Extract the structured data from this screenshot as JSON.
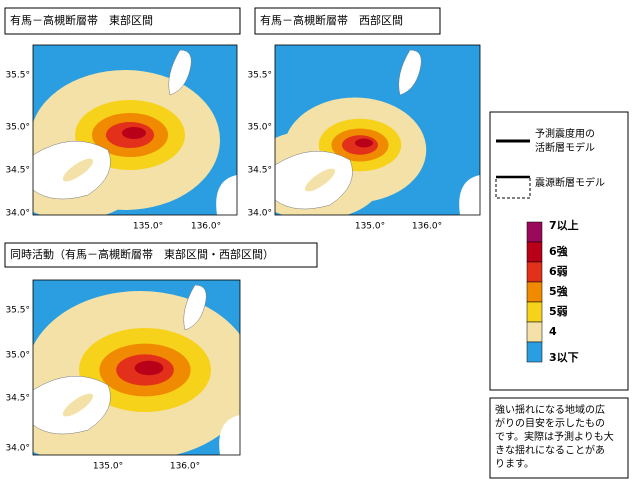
{
  "panels": [
    {
      "title": "有馬－高槻断層帯　東部区間",
      "yticks": [
        "35.5°",
        "35.0°",
        "34.5°",
        "34.0°"
      ],
      "xticks": [
        "135.0°",
        "136.0°"
      ]
    },
    {
      "title": "有馬－高槻断層帯　西部区間",
      "yticks": [
        "35.5°",
        "35.0°",
        "34.5°",
        "34.0°"
      ],
      "xticks": [
        "135.0°",
        "136.0°"
      ]
    },
    {
      "title": "同時活動（有馬－高槻断層帯　東部区間・西部区間）",
      "yticks": [
        "35.5°",
        "35.0°",
        "34.5°",
        "34.0°"
      ],
      "xticks": [
        "135.0°",
        "136.0°"
      ]
    }
  ],
  "legend": {
    "fault_model": [
      "予測震度用の",
      "活断層モデル"
    ],
    "source_model": "震源断層モデル",
    "scale": [
      "7以上",
      "6強",
      "6弱",
      "5強",
      "5弱",
      "4",
      "3以下"
    ]
  },
  "note": [
    "強い揺れになる地域の広",
    "がりの目安を示したもの",
    "です。実際は予測よりも大",
    "きな揺れになることがあ",
    "ります。"
  ]
}
